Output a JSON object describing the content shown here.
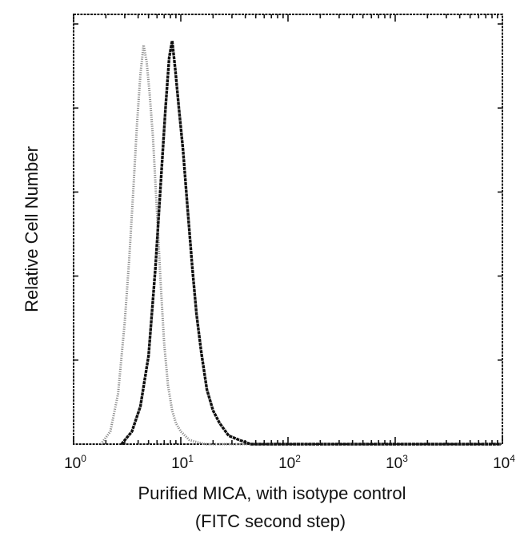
{
  "chart_data": {
    "type": "area",
    "xlabel": "Purified MICA, with isotype control",
    "xlabel_line2": "(FITC second step)",
    "ylabel": "Relative Cell Number",
    "x_scale": "log",
    "xlim": [
      1,
      10000
    ],
    "ylim": [
      0,
      1
    ],
    "x_ticks": [
      {
        "base": "10",
        "exp": "0"
      },
      {
        "base": "10",
        "exp": "1"
      },
      {
        "base": "10",
        "exp": "2"
      },
      {
        "base": "10",
        "exp": "3"
      },
      {
        "base": "10",
        "exp": "4"
      }
    ],
    "grid": false,
    "series": [
      {
        "style": "dotted-gray",
        "color": "#8a8a8a",
        "x": [
          1.8,
          2.2,
          2.6,
          3.0,
          3.3,
          3.6,
          3.9,
          4.2,
          4.5,
          4.8,
          5.1,
          5.5,
          6.0,
          6.5,
          7.0,
          7.6,
          8.3,
          9.0,
          10.0,
          11.0,
          12.0,
          14.0,
          17.0,
          20.0
        ],
        "y": [
          0.0,
          0.03,
          0.12,
          0.29,
          0.44,
          0.6,
          0.76,
          0.88,
          0.95,
          0.91,
          0.84,
          0.73,
          0.55,
          0.38,
          0.24,
          0.14,
          0.08,
          0.05,
          0.03,
          0.02,
          0.01,
          0.005,
          0.0,
          0.0
        ]
      },
      {
        "style": "solid-black",
        "color": "#111111",
        "x": [
          2.8,
          3.5,
          4.2,
          5.0,
          5.8,
          6.5,
          7.2,
          7.8,
          8.3,
          8.9,
          9.6,
          10.5,
          11.5,
          12.8,
          14.0,
          15.5,
          17.5,
          20.0,
          23.0,
          28.0,
          35.0,
          45.0
        ],
        "y": [
          0.0,
          0.03,
          0.09,
          0.21,
          0.42,
          0.62,
          0.8,
          0.92,
          0.96,
          0.89,
          0.8,
          0.7,
          0.57,
          0.42,
          0.31,
          0.22,
          0.13,
          0.08,
          0.05,
          0.02,
          0.01,
          0.0
        ]
      }
    ]
  }
}
